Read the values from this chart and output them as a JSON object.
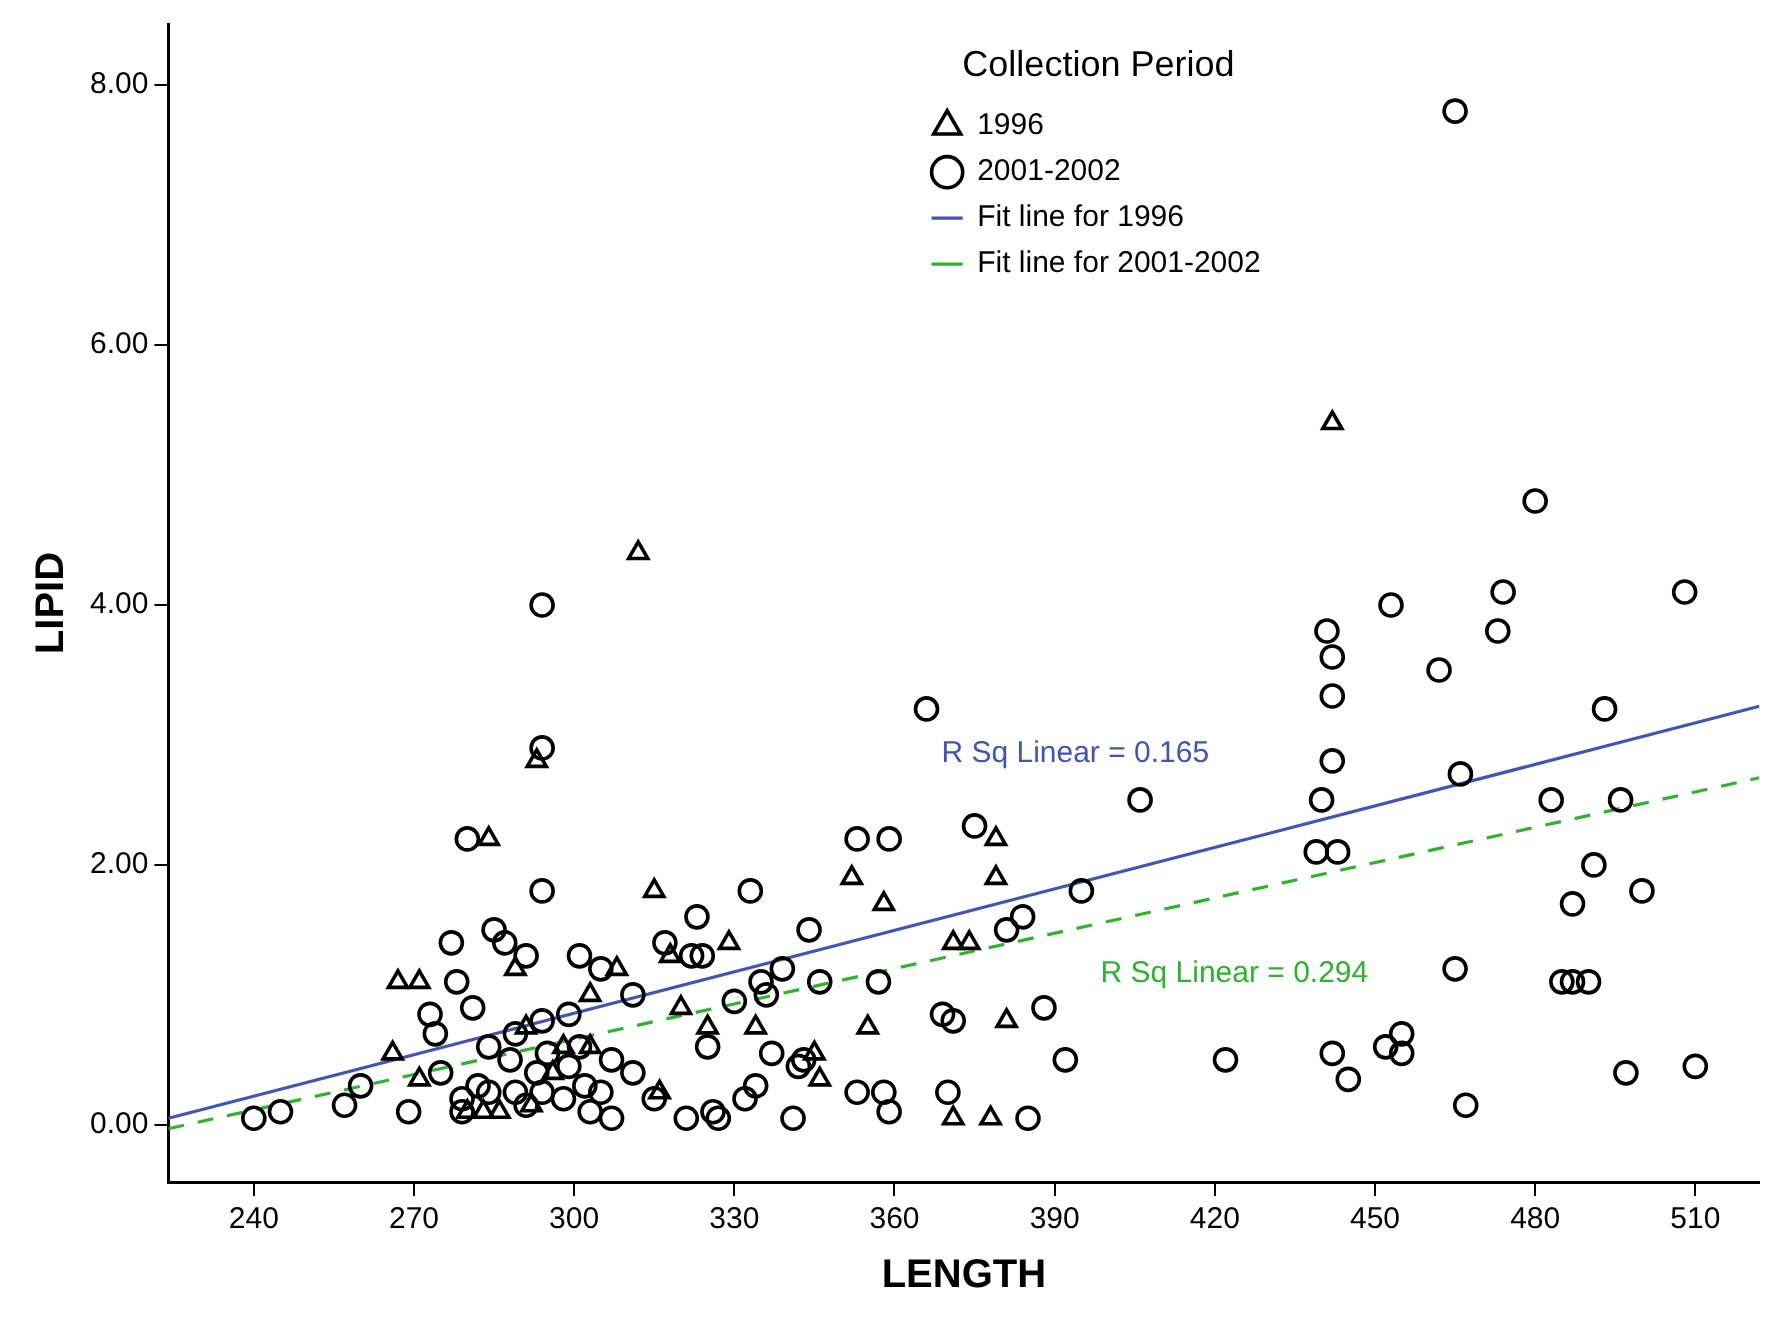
{
  "chart_data": {
    "type": "scatter",
    "xlabel": "LENGTH",
    "ylabel": "LIPID",
    "legend_title": "Collection Period",
    "legend": "top right",
    "grid": false,
    "xlim": [
      224,
      522
    ],
    "xticks": [
      240,
      270,
      300,
      330,
      360,
      390,
      420,
      450,
      480,
      510
    ],
    "ylim": [
      -0.44,
      8.47
    ],
    "yticks": [
      {
        "value": 0,
        "label": "0.00"
      },
      {
        "value": 2,
        "label": "2.00"
      },
      {
        "value": 4,
        "label": "4.00"
      },
      {
        "value": 6,
        "label": "6.00"
      },
      {
        "value": 8,
        "label": "8.00"
      }
    ],
    "annotations": [
      "R Sq Linear = 0.165",
      "R Sq Linear = 0.294"
    ],
    "series": [
      {
        "name": "1996",
        "marker": "triangle",
        "color": "#000000",
        "x": [
          442,
          312,
          293,
          284,
          315,
          352,
          358,
          379,
          379,
          371,
          374,
          329,
          318,
          308,
          267,
          271,
          289,
          303,
          320,
          266,
          271,
          325,
          334,
          355,
          381,
          346,
          371,
          378,
          316,
          345,
          283,
          286,
          292,
          296,
          298,
          291,
          303,
          280
        ],
        "values": [
          5.4,
          4.4,
          2.8,
          2.2,
          1.8,
          1.9,
          1.7,
          2.2,
          1.9,
          1.4,
          1.4,
          1.4,
          1.3,
          1.2,
          1.1,
          1.1,
          1.2,
          1.0,
          0.9,
          0.55,
          0.35,
          0.75,
          0.75,
          0.75,
          0.8,
          0.35,
          0.05,
          0.05,
          0.25,
          0.55,
          0.1,
          0.1,
          0.15,
          0.4,
          0.6,
          0.75,
          0.6,
          0.1
        ]
      },
      {
        "name": "2001-2002",
        "marker": "circle",
        "color": "#000000",
        "x": [
          465,
          480,
          474,
          508,
          294,
          453,
          441,
          473,
          442,
          462,
          442,
          366,
          493,
          294,
          442,
          466,
          280,
          353,
          359,
          375,
          406,
          440,
          483,
          496,
          439,
          443,
          395,
          294,
          333,
          491,
          500,
          487,
          384,
          323,
          381,
          344,
          285,
          277,
          287,
          317,
          322,
          324,
          291,
          301,
          305,
          465,
          485,
          487,
          490,
          357,
          335,
          346,
          278,
          311,
          339,
          388,
          369,
          371,
          281,
          273,
          330,
          336,
          299,
          294,
          289,
          274,
          284,
          275,
          288,
          295,
          301,
          299,
          307,
          311,
          325,
          337,
          342,
          353,
          343,
          334,
          392,
          422,
          442,
          452,
          455,
          455,
          445,
          467,
          497,
          510,
          358,
          370,
          359,
          385,
          240,
          245,
          260,
          269,
          257,
          294,
          303,
          307,
          321,
          326,
          327,
          332,
          341,
          315,
          279,
          279,
          282,
          291,
          298,
          302,
          305,
          293,
          284,
          289
        ],
        "values": [
          7.8,
          4.8,
          4.1,
          4.1,
          4.0,
          4.0,
          3.8,
          3.8,
          3.6,
          3.5,
          3.3,
          3.2,
          3.2,
          2.9,
          2.8,
          2.7,
          2.2,
          2.2,
          2.2,
          2.3,
          2.5,
          2.5,
          2.5,
          2.5,
          2.1,
          2.1,
          1.8,
          1.8,
          1.8,
          2.0,
          1.8,
          1.7,
          1.6,
          1.6,
          1.5,
          1.5,
          1.5,
          1.4,
          1.4,
          1.4,
          1.3,
          1.3,
          1.3,
          1.3,
          1.2,
          1.2,
          1.1,
          1.1,
          1.1,
          1.1,
          1.1,
          1.1,
          1.1,
          1.0,
          1.2,
          0.9,
          0.85,
          0.8,
          0.9,
          0.85,
          0.95,
          1.0,
          0.85,
          0.8,
          0.7,
          0.7,
          0.6,
          0.4,
          0.5,
          0.55,
          0.6,
          0.45,
          0.5,
          0.4,
          0.6,
          0.55,
          0.45,
          0.25,
          0.5,
          0.3,
          0.5,
          0.5,
          0.55,
          0.6,
          0.7,
          0.55,
          0.35,
          0.15,
          0.4,
          0.45,
          0.25,
          0.25,
          0.1,
          0.05,
          0.05,
          0.1,
          0.3,
          0.1,
          0.15,
          0.25,
          0.1,
          0.05,
          0.05,
          0.1,
          0.05,
          0.2,
          0.05,
          0.2,
          0.2,
          0.1,
          0.3,
          0.15,
          0.2,
          0.3,
          0.25,
          0.4,
          0.25,
          0.25
        ]
      },
      {
        "name": "Fit line for 1996",
        "type": "line",
        "line_style": "solid",
        "color": "#4055b5",
        "x": [
          224,
          522
        ],
        "values": [
          0.05,
          3.22
        ]
      },
      {
        "name": "Fit line for 2001-2002",
        "type": "line",
        "line_style": "dashed",
        "color": "#2cb52c",
        "x": [
          224,
          522
        ],
        "values": [
          -0.03,
          2.67
        ]
      }
    ]
  }
}
